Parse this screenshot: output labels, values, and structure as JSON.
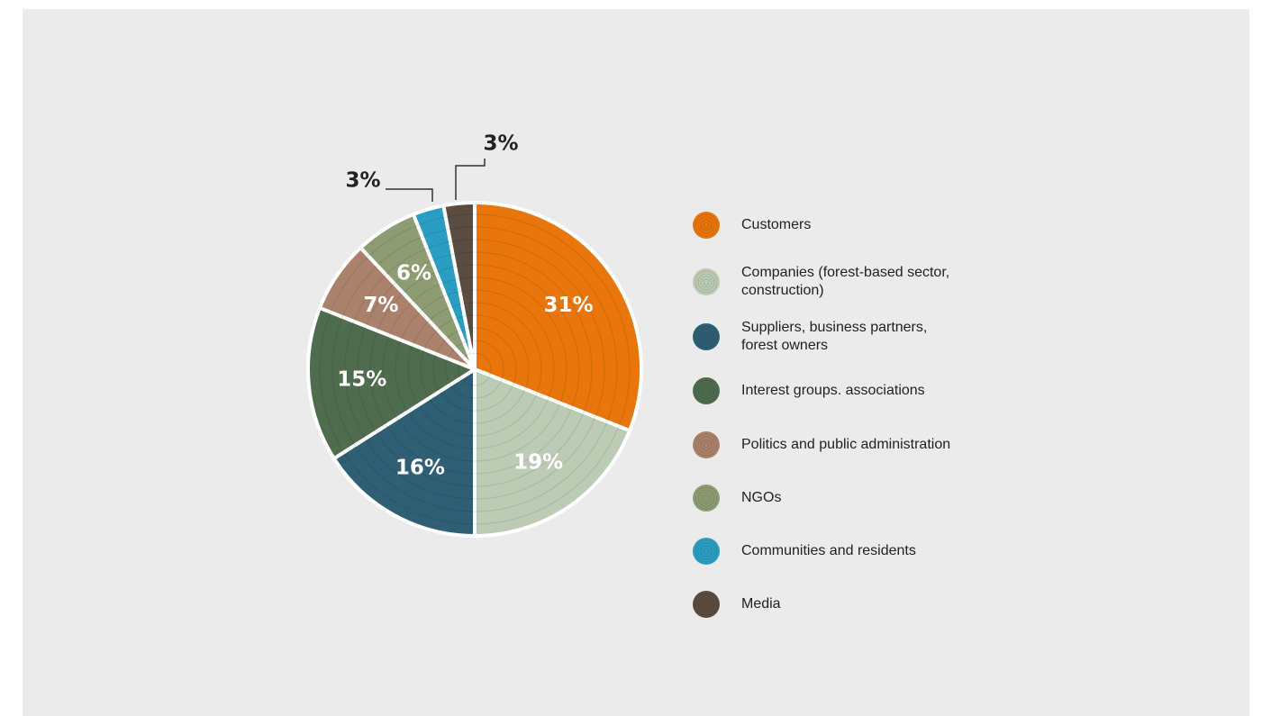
{
  "chart_data": {
    "type": "pie",
    "categories": [
      "Customers",
      "Companies (forest-based sector, construction)",
      "Suppliers, business partners, forest owners",
      "Interest groups. associations",
      "Politics and public administration",
      "NGOs",
      "Communities and residents",
      "Media"
    ],
    "values": [
      31,
      19,
      16,
      15,
      7,
      6,
      3,
      3
    ],
    "value_labels": [
      "31%",
      "19%",
      "16%",
      "15%",
      "7%",
      "6%",
      "3%",
      "3%"
    ],
    "colors": [
      "#e8760c",
      "#bccbb4",
      "#2f5f74",
      "#506c4f",
      "#aa826b",
      "#8d9c72",
      "#2a9ec2",
      "#5a4c41"
    ],
    "legend": "right"
  }
}
